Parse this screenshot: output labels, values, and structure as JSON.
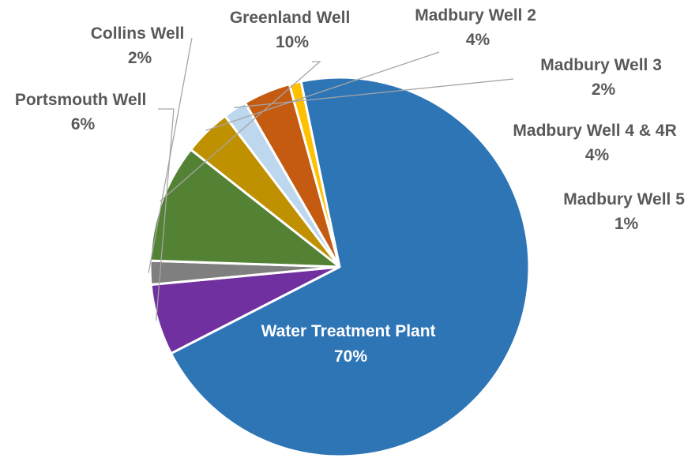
{
  "chart_data": {
    "type": "pie",
    "start_angle_deg": -117.2,
    "direction": "clockwise",
    "slices": [
      {
        "name": "Portsmouth Well",
        "value": 6,
        "label": "6%",
        "color": "#7030A0"
      },
      {
        "name": "Collins Well",
        "value": 2,
        "label": "2%",
        "color": "#7F7F7F"
      },
      {
        "name": "Greenland Well",
        "value": 10,
        "label": "10%",
        "color": "#548235"
      },
      {
        "name": "Madbury Well 2",
        "value": 4,
        "label": "4%",
        "color": "#BF9000"
      },
      {
        "name": "Madbury Well 3",
        "value": 2,
        "label": "2%",
        "color": "#BDD7EE"
      },
      {
        "name": "Madbury Well 4 & 4R",
        "value": 4,
        "label": "4%",
        "color": "#C55A11"
      },
      {
        "name": "Madbury Well 5",
        "value": 1,
        "label": "1%",
        "color": "#FFC000"
      },
      {
        "name": "Water Treatment Plant",
        "value": 70,
        "label": "70%",
        "color": "#2E75B6"
      }
    ],
    "leader_line_color": "#A6A6A6",
    "label_color": "#595959"
  }
}
